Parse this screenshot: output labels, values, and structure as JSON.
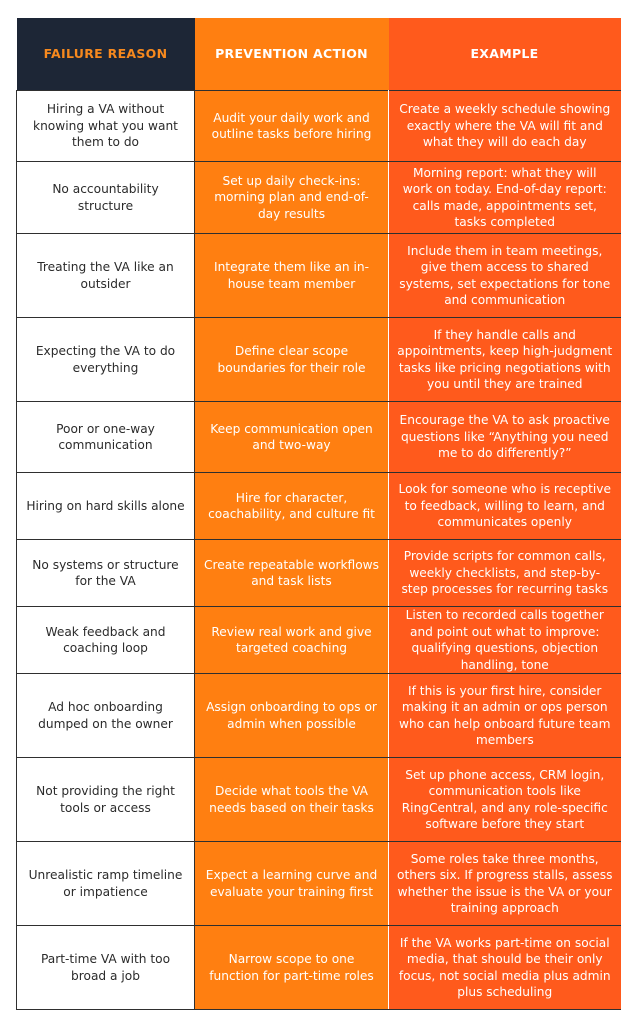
{
  "header": {
    "columns": [
      "FAILURE REASON",
      "PREVENTION ACTION",
      "EXAMPLE"
    ]
  },
  "table": {
    "rows": [
      [
        "Hiring a VA without knowing what you want them to do",
        "Audit your daily work and outline tasks before hiring",
        "Create a weekly schedule showing exactly where the VA will fit and what they will do each day"
      ],
      [
        "No accountability structure",
        "Set up daily check-ins: morning plan and end-of-day results",
        "Morning report: what they will work on today. End-of-day report: calls made, appointments set, tasks completed"
      ],
      [
        "Treating the VA like an outsider",
        "Integrate them like an in-house team member",
        "Include them in team meetings, give them access to shared systems, set expectations for tone and communication"
      ],
      [
        "Expecting the VA to do everything",
        "Define clear scope boundaries for their role",
        "If they handle calls and appointments, keep high-judgment tasks like pricing negotiations with you until they are trained"
      ],
      [
        "Poor or one-way communication",
        "Keep communication open and two-way",
        "Encourage the VA to ask proactive questions like “Anything you need me to do differently?”"
      ],
      [
        "Hiring on hard skills alone",
        "Hire for character, coachability, and culture fit",
        "Look for someone who is receptive to feedback, willing to learn, and communicates openly"
      ],
      [
        "No systems or structure for the VA",
        "Create repeatable workflows and task lists",
        "Provide scripts for common calls, weekly checklists, and step-by-step processes for recurring tasks"
      ],
      [
        "Weak feedback and coaching loop",
        "Review real work and give targeted coaching",
        "Listen to recorded calls together and point out what to improve: qualifying questions, objection handling, tone"
      ],
      [
        "Ad hoc onboarding dumped on the owner",
        "Assign onboarding to ops or admin when possible",
        "If this is your first hire, consider making it an admin or ops person who can help onboard future team members"
      ],
      [
        "Not providing the right tools or access",
        "Decide what tools the VA needs based on their tasks",
        "Set up phone access, CRM login, communication tools like RingCentral, and any role-specific software before they start"
      ],
      [
        "Unrealistic ramp timeline or impatience",
        "Expect a learning curve and evaluate your training first",
        "Some roles take three months, others six. If progress stalls, assess whether the issue is the VA or your training approach"
      ],
      [
        "Part-time VA with too broad a job",
        "Narrow scope to one function for part-time roles",
        "If the VA works part-time on social media, that should be their only focus, not social media plus admin plus scheduling"
      ]
    ]
  }
}
